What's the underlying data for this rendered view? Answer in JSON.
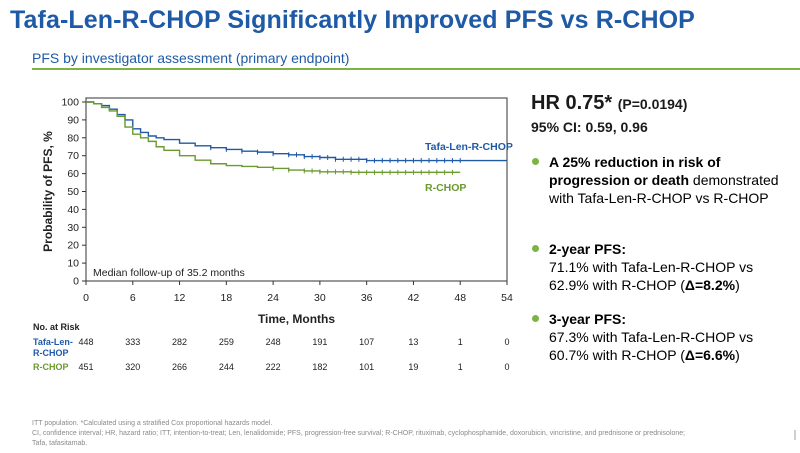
{
  "header": {
    "title": "Tafa-Len-R-CHOP Significantly Improved PFS vs R-CHOP",
    "subtitle": "PFS by investigator assessment (primary endpoint)"
  },
  "summary": {
    "hr_main": "HR 0.75*",
    "p_value": "(P=0.0194)",
    "ci": "95% CI: 0.59, 0.96",
    "bullets": [
      {
        "bold": "A 25% reduction in risk of progression or death",
        "rest": " demonstrated with Tafa-Len-R-CHOP vs R-CHOP"
      },
      {
        "bold": "2-year PFS:",
        "line2": "71.1% with Tafa-Len-R-CHOP vs",
        "line3_pre": "62.9% with R-CHOP (",
        "line3_bold": "Δ=8.2%",
        "line3_post": ")"
      },
      {
        "bold": "3-year PFS:",
        "line2": "67.3% with Tafa-Len-R-CHOP vs",
        "line3_pre": "60.7% with R-CHOP (",
        "line3_bold": "Δ=6.6%",
        "line3_post": ")"
      }
    ]
  },
  "footnotes": {
    "line1": "ITT population. *Calculated using a stratified Cox proportional hazards model.",
    "line2": "CI, confidence interval; HR, hazard ratio; ITT, intention-to-treat; Len, lenalidomide; PFS, progression-free survival; R-CHOP, rituximab, cyclophosphamide, doxorubicin, vincristine, and prednisone or prednisolone;",
    "line3": "Tafa, tafasitamab."
  },
  "chart_data": {
    "type": "line",
    "title": "",
    "xlabel": "Time, Months",
    "ylabel": "Probability of PFS, %",
    "xlim": [
      0,
      54
    ],
    "ylim": [
      0,
      100
    ],
    "x_ticks": [
      0,
      6,
      12,
      18,
      24,
      30,
      36,
      42,
      48,
      54
    ],
    "y_ticks": [
      0,
      10,
      20,
      30,
      40,
      50,
      60,
      70,
      80,
      90,
      100
    ],
    "annotation": "Median follow-up of 35.2 months",
    "series": [
      {
        "name": "Tafa-Len-R-CHOP",
        "color": "#1f5aa6",
        "points": [
          [
            0,
            100
          ],
          [
            1,
            99
          ],
          [
            2,
            98
          ],
          [
            3,
            96
          ],
          [
            4,
            93
          ],
          [
            5,
            90
          ],
          [
            6,
            85
          ],
          [
            7,
            83
          ],
          [
            8,
            81
          ],
          [
            9,
            80
          ],
          [
            10,
            79
          ],
          [
            12,
            77
          ],
          [
            14,
            75.5
          ],
          [
            16,
            74.5
          ],
          [
            18,
            73.5
          ],
          [
            20,
            72.5
          ],
          [
            22,
            72
          ],
          [
            24,
            71.1
          ],
          [
            26,
            70.5
          ],
          [
            28,
            69.5
          ],
          [
            30,
            69
          ],
          [
            32,
            68
          ],
          [
            34,
            68
          ],
          [
            36,
            67.3
          ],
          [
            38,
            67.3
          ],
          [
            42,
            67.3
          ],
          [
            48,
            67.3
          ],
          [
            54,
            67.3
          ]
        ],
        "censor_x": [
          16,
          18,
          20,
          22,
          24,
          26,
          27,
          28,
          29,
          30,
          31,
          32,
          33,
          34,
          35,
          36,
          37,
          38,
          39,
          40,
          41,
          42,
          43,
          44,
          45,
          46,
          47,
          48
        ]
      },
      {
        "name": "R-CHOP",
        "color": "#6b9a2e",
        "points": [
          [
            0,
            100
          ],
          [
            1,
            99
          ],
          [
            2,
            97
          ],
          [
            3,
            95
          ],
          [
            4,
            92
          ],
          [
            5,
            86
          ],
          [
            6,
            82
          ],
          [
            7,
            80
          ],
          [
            8,
            78
          ],
          [
            9,
            75
          ],
          [
            10,
            73
          ],
          [
            12,
            70
          ],
          [
            14,
            67.5
          ],
          [
            16,
            65.5
          ],
          [
            18,
            64.5
          ],
          [
            20,
            64
          ],
          [
            22,
            63.5
          ],
          [
            24,
            62.9
          ],
          [
            26,
            62
          ],
          [
            28,
            61.5
          ],
          [
            30,
            61
          ],
          [
            32,
            61
          ],
          [
            34,
            60.7
          ],
          [
            36,
            60.7
          ],
          [
            38,
            60.7
          ],
          [
            42,
            60.7
          ],
          [
            48,
            60.7
          ]
        ],
        "censor_x": [
          24,
          26,
          28,
          29,
          30,
          31,
          32,
          33,
          34,
          35,
          36,
          37,
          38,
          39,
          40,
          41,
          42,
          43,
          44,
          45,
          46,
          47
        ]
      }
    ],
    "at_risk": {
      "header": "No. at Risk",
      "rows": [
        {
          "label1": "Tafa-Len-",
          "label2": "R-CHOP",
          "values": [
            "448",
            "333",
            "282",
            "259",
            "248",
            "191",
            "107",
            "13",
            "1",
            "0"
          ]
        },
        {
          "label1": "R-CHOP",
          "label2": "",
          "values": [
            "451",
            "320",
            "266",
            "244",
            "222",
            "182",
            "101",
            "19",
            "1",
            "0"
          ]
        }
      ]
    }
  }
}
